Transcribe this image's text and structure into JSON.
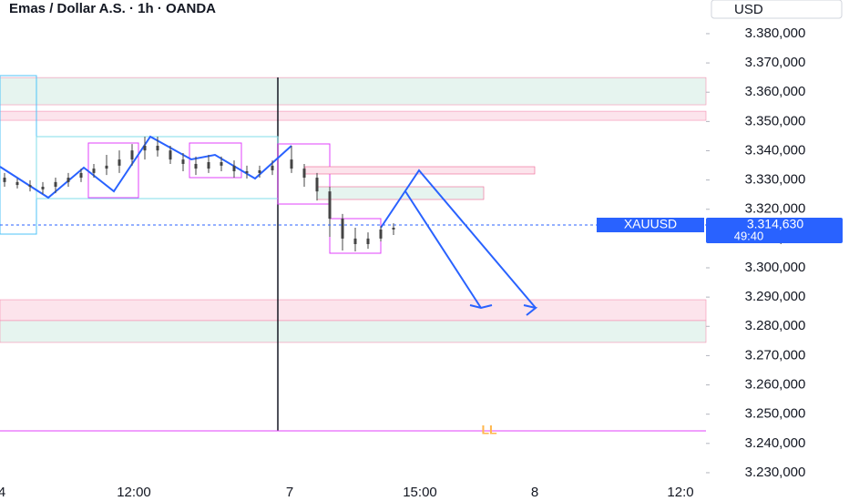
{
  "chart_data": {
    "type": "candlestick",
    "title": "Emas / Dollar A.S. · 1h · OANDA",
    "currency": "USD",
    "ylim": [
      3225.0,
      3391.5
    ],
    "yticks": [
      {
        "value": 3380,
        "label": "3.380,000"
      },
      {
        "value": 3370,
        "label": "3.370,000"
      },
      {
        "value": 3360,
        "label": "3.360,000"
      },
      {
        "value": 3350,
        "label": "3.350,000"
      },
      {
        "value": 3340,
        "label": "3.340,000"
      },
      {
        "value": 3330,
        "label": "3.330,000"
      },
      {
        "value": 3320,
        "label": "3.320,000"
      },
      {
        "value": 3310,
        "label": "3.310,000"
      },
      {
        "value": 3300,
        "label": "3.300,000"
      },
      {
        "value": 3290,
        "label": "3.290,000"
      },
      {
        "value": 3280,
        "label": "3.280,000"
      },
      {
        "value": 3270,
        "label": "3.270,000"
      },
      {
        "value": 3260,
        "label": "3.260,000"
      },
      {
        "value": 3250,
        "label": "3.250,000"
      },
      {
        "value": 3240,
        "label": "3.240,000"
      },
      {
        "value": 3230,
        "label": "3.230,000"
      }
    ],
    "x_labels": [
      "4",
      "12:00",
      "7",
      "15:00",
      "8",
      "12:0"
    ],
    "color": "#444444",
    "open": [
      3330.8,
      3329.3,
      3328.3,
      3327.7,
      3327.7,
      3329.3,
      3330.8,
      3332.4,
      3333.9,
      3334.9,
      3337.0,
      3340.1,
      3341.7,
      3340.1,
      3337.0,
      3335.5,
      3333.9,
      3336.1,
      3334.9,
      3333.0,
      3332.4,
      3333.3,
      3337.0,
      3333.9,
      3330.8,
      3326.1,
      3316.8,
      3310.0,
      3308.1,
      3310.0,
      3313.1
    ],
    "close": [
      3329.3,
      3328.3,
      3327.7,
      3326.8,
      3329.3,
      3330.8,
      3332.4,
      3333.9,
      3334.9,
      3337.0,
      3340.1,
      3341.7,
      3340.1,
      3337.0,
      3335.5,
      3333.9,
      3336.1,
      3334.9,
      3333.0,
      3332.4,
      3333.3,
      3334.9,
      3333.9,
      3330.8,
      3326.1,
      3316.8,
      3310.0,
      3308.1,
      3310.0,
      3313.1,
      3313.7
    ],
    "high": [
      3332.4,
      3330.5,
      3329.9,
      3329.3,
      3330.8,
      3332.4,
      3333.9,
      3335.5,
      3338.6,
      3340.1,
      3342.3,
      3344.8,
      3344.8,
      3341.7,
      3339.2,
      3338.0,
      3338.6,
      3338.0,
      3336.7,
      3334.9,
      3334.9,
      3336.7,
      3341.7,
      3335.5,
      3332.4,
      3327.7,
      3318.4,
      3313.7,
      3312.1,
      3314.3,
      3315.2
    ],
    "low": [
      3327.7,
      3327.1,
      3326.1,
      3325.2,
      3325.5,
      3327.7,
      3329.3,
      3330.8,
      3331.7,
      3332.4,
      3334.9,
      3337.0,
      3338.0,
      3335.5,
      3333.0,
      3331.7,
      3332.4,
      3333.0,
      3330.8,
      3330.5,
      3330.8,
      3331.7,
      3332.4,
      3327.7,
      3323.0,
      3310.6,
      3305.9,
      3305.6,
      3306.5,
      3309.0,
      3311.2
    ],
    "zones": [
      {
        "low": 3355.7,
        "high": 3365.0,
        "color": "#e6f4ef"
      },
      {
        "low": 3350.4,
        "high": 3353.5,
        "color": "#fce4ec"
      },
      {
        "low": 3282.0,
        "high": 3289.1,
        "color": "#fce4ec"
      },
      {
        "low": 3274.5,
        "high": 3282.0,
        "color": "#e6f4ef"
      }
    ],
    "ll_level": 3244.3,
    "ll_label": "LL",
    "current_price": {
      "value": 3314.63,
      "label": "3.314,630",
      "symbol": "XAUUSD",
      "countdown": "49:40",
      "color": "#2962ff"
    }
  }
}
